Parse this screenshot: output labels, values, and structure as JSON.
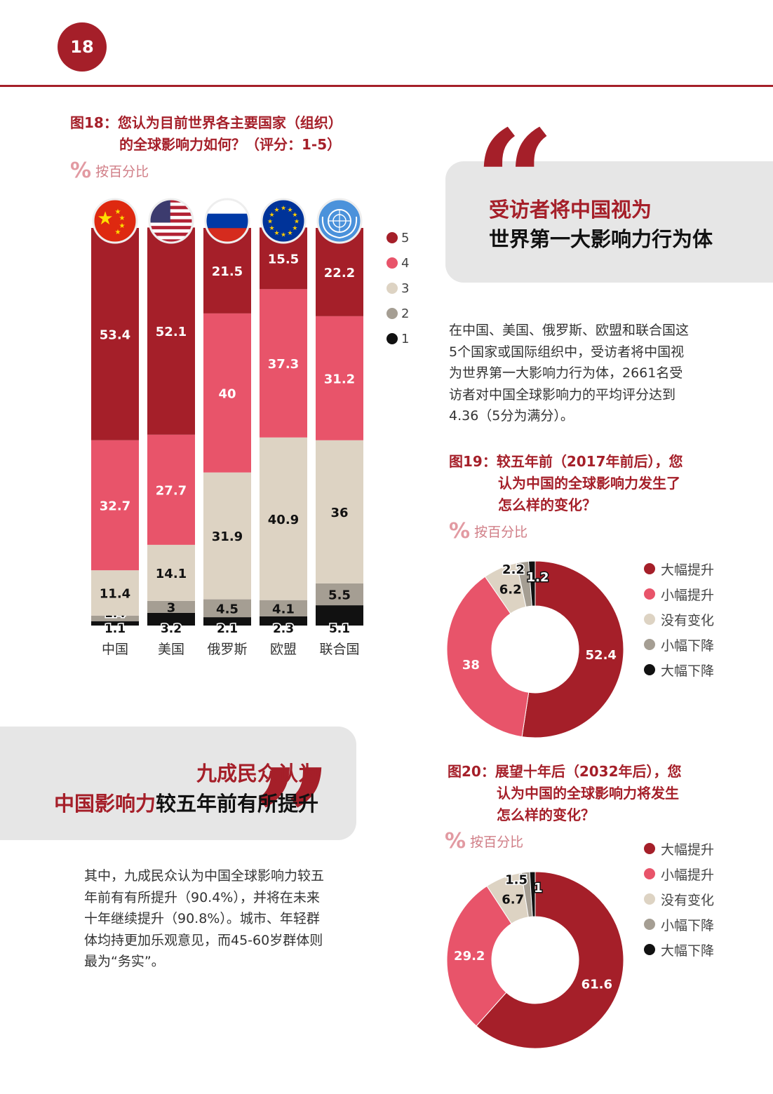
{
  "page_number": "18",
  "colors": {
    "accent": "#a51f29",
    "pink": "#e8546a",
    "beige": "#ddd3c3",
    "gray": "#a59e93",
    "black": "#111111"
  },
  "fig18": {
    "title_line1": "图18：您认为目前世界各主要国家（组织）",
    "title_line2": "的全球影响力如何？（评分：1-5）",
    "unit_label": "按百分比"
  },
  "fig19": {
    "title_line1": "图19：较五年前（2017年前后），您",
    "title_line2": "认为中国的全球影响力发生了",
    "title_line3": "怎么样的变化？",
    "unit_label": "按百分比"
  },
  "fig20": {
    "title_line1": "图20：展望十年后（2032年后），您",
    "title_line2": "认为中国的全球影响力将发生",
    "title_line3": "怎么样的变化？",
    "unit_label": "按百分比"
  },
  "callout1": {
    "line1": "受访者将中国视为",
    "line2": "世界第一大影响力行为体"
  },
  "callout2": {
    "line1": "九成民众认为",
    "line2_red": "中国影响力",
    "line2_black": "较五年前有所提升"
  },
  "paragraph1": [
    "在中国、美国、俄罗斯、欧盟和联合国这",
    "5个国家或国际组织中，受访者将中国视",
    "为世界第一大影响力行为体，2661名受",
    "访者对中国全球影响力的平均评分达到",
    "4.36（5分为满分）。"
  ],
  "paragraph2": [
    "其中，九成民众认为中国全球影响力较五",
    "年前有有所提升（90.4%），并将在未来",
    "十年继续提升（90.8%）。城市、年轻群",
    "体均持更加乐观意见，而45-60岁群体则",
    "最为“务实”。"
  ],
  "chart_data": [
    {
      "type": "bar",
      "stacked": true,
      "categories": [
        "中国",
        "美国",
        "俄罗斯",
        "欧盟",
        "联合国"
      ],
      "flag_icons": [
        "china-flag-icon",
        "usa-flag-icon",
        "russia-flag-icon",
        "eu-flag-icon",
        "un-flag-icon"
      ],
      "series": [
        {
          "name": "1",
          "color": "#111111",
          "values": [
            1.1,
            3.2,
            2.1,
            2.3,
            5.1
          ]
        },
        {
          "name": "2",
          "color": "#a59e93",
          "values": [
            1.4,
            3,
            4.5,
            4.1,
            5.5
          ]
        },
        {
          "name": "3",
          "color": "#ddd3c3",
          "values": [
            11.4,
            14.1,
            31.9,
            40.9,
            36
          ]
        },
        {
          "name": "4",
          "color": "#e8546a",
          "values": [
            32.7,
            27.7,
            40,
            37.3,
            31.2
          ]
        },
        {
          "name": "5",
          "color": "#a51f29",
          "values": [
            53.4,
            52.1,
            21.5,
            15.5,
            22.2
          ]
        }
      ],
      "legend_order": [
        "5",
        "4",
        "3",
        "2",
        "1"
      ],
      "legend_placement": "right",
      "ylim": [
        0,
        100
      ]
    },
    {
      "type": "pie",
      "donut": true,
      "labels": [
        "大幅提升",
        "小幅提升",
        "没有变化",
        "小幅下降",
        "大幅下降"
      ],
      "values": [
        52.4,
        38,
        6.2,
        2.2,
        1.2
      ],
      "colors": [
        "#a51f29",
        "#e8546a",
        "#ddd3c3",
        "#a59e93",
        "#111111"
      ],
      "legend_placement": "right"
    },
    {
      "type": "pie",
      "donut": true,
      "labels": [
        "大幅提升",
        "小幅提升",
        "没有变化",
        "小幅下降",
        "大幅下降"
      ],
      "values": [
        61.6,
        29.2,
        6.7,
        1.5,
        1
      ],
      "colors": [
        "#a51f29",
        "#e8546a",
        "#ddd3c3",
        "#a59e93",
        "#111111"
      ],
      "legend_placement": "right"
    }
  ]
}
